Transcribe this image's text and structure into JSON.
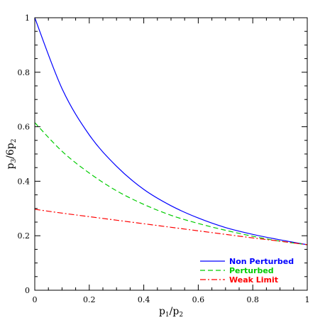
{
  "chart_data": {
    "type": "line",
    "xlabel": {
      "main": "p",
      "sub1": "1",
      "slash": "/p",
      "sub2": "2"
    },
    "ylabel": {
      "main": "p",
      "sub1": "3",
      "mid": "/6p",
      "sub2": "2"
    },
    "xlim": [
      0,
      1
    ],
    "ylim": [
      0,
      1
    ],
    "x_ticks": [
      0,
      0.2,
      0.4,
      0.6,
      0.8,
      1
    ],
    "x_tick_labels": [
      "0",
      "0.2",
      "0.4",
      "0.6",
      "0.8",
      "1"
    ],
    "y_ticks": [
      0,
      0.2,
      0.4,
      0.6,
      0.8,
      1
    ],
    "y_tick_labels": [
      "0",
      "0.2",
      "0.4",
      "0.6",
      "0.8",
      "1"
    ],
    "grid": false,
    "legend_placement": "bottom-right",
    "x": [
      0,
      0.1,
      0.2,
      0.3,
      0.4,
      0.5,
      0.6,
      0.7,
      0.8,
      0.9,
      1.0
    ],
    "series": [
      {
        "name": "Non Perturbed",
        "color": "#0000ff",
        "style": "solid",
        "values": [
          1.0,
          0.74,
          0.57,
          0.455,
          0.37,
          0.31,
          0.265,
          0.23,
          0.205,
          0.185,
          0.167
        ]
      },
      {
        "name": "Perturbed",
        "color": "#00cc00",
        "style": "dashed",
        "values": [
          0.615,
          0.51,
          0.43,
          0.365,
          0.315,
          0.275,
          0.245,
          0.22,
          0.198,
          0.18,
          0.167
        ]
      },
      {
        "name": "Weak Limit",
        "color": "#ff0000",
        "style": "dash-dot",
        "values": [
          0.297,
          0.283,
          0.27,
          0.257,
          0.244,
          0.231,
          0.218,
          0.205,
          0.192,
          0.18,
          0.167
        ]
      }
    ]
  }
}
